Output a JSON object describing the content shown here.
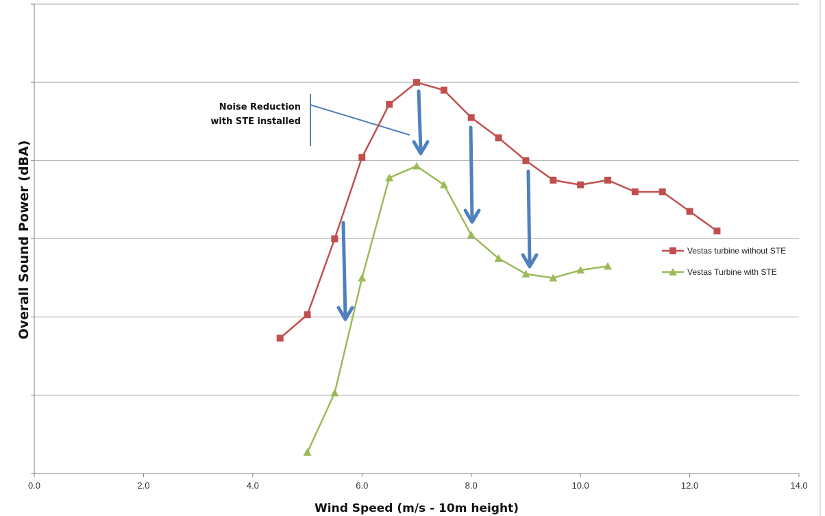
{
  "chart_data": {
    "type": "line",
    "title": "",
    "xlabel": "Wind Speed  (m/s - 10m height)",
    "ylabel": "Overall Sound Power (dBA)",
    "xlim": [
      0,
      14
    ],
    "x_ticks": [
      "0.0",
      "2.0",
      "4.0",
      "6.0",
      "8.0",
      "10.0",
      "12.0",
      "14.0"
    ],
    "ylim": [
      0,
      6
    ],
    "y_ticks_labeled": false,
    "grid": "horizontal",
    "legend_position": "right",
    "series": [
      {
        "name": "Vestas turbine without STE",
        "color": "#c0504d",
        "marker": "square",
        "x": [
          4.5,
          5.0,
          5.5,
          6.0,
          6.5,
          7.0,
          7.5,
          8.0,
          8.5,
          9.0,
          9.5,
          10.0,
          10.5,
          11.0,
          11.5,
          12.0,
          12.5
        ],
        "y": [
          1.73,
          2.03,
          3.0,
          4.04,
          4.72,
          5.0,
          4.9,
          4.55,
          4.29,
          4.0,
          3.75,
          3.69,
          3.75,
          3.6,
          3.6,
          3.35,
          3.1
        ]
      },
      {
        "name": "Vestas Turbine with STE",
        "color": "#9bbb59",
        "marker": "triangle",
        "x": [
          5.0,
          5.5,
          6.0,
          6.5,
          7.0,
          7.5,
          8.0,
          8.5,
          9.0,
          9.5,
          10.0,
          10.5
        ],
        "y": [
          0.27,
          1.03,
          2.5,
          3.78,
          3.93,
          3.69,
          3.05,
          2.75,
          2.55,
          2.5,
          2.6,
          2.65
        ]
      }
    ],
    "annotations": {
      "text_lines": [
        "Noise Reduction",
        "with STE installed"
      ],
      "color": "#4f81bd"
    }
  }
}
